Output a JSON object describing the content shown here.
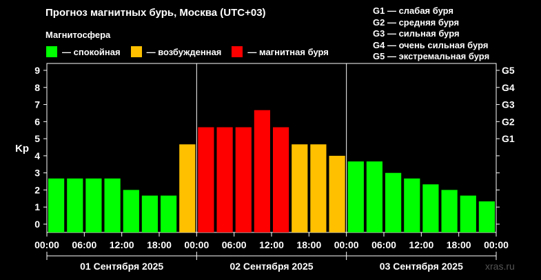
{
  "header": {
    "title": "Прогноз магнитных бурь, Москва (UTC+03)",
    "subtitle": "Магнитосфера"
  },
  "legend": [
    {
      "label": "— спокойная",
      "color": "#00ff00"
    },
    {
      "label": "— возбужденная",
      "color": "#ffc000"
    },
    {
      "label": "— магнитная буря",
      "color": "#ff0000"
    }
  ],
  "g_scale": [
    "G1 — слабая буря",
    "G2 — средняя буря",
    "G3 — сильная буря",
    "G4 — очень сильная буря",
    "G5 — экстремальная буря"
  ],
  "watermark": "xras.ru",
  "chart_data": {
    "type": "bar",
    "ylabel": "Kp",
    "ylim": [
      0,
      9
    ],
    "y_ticks": [
      "0",
      "1",
      "2",
      "3",
      "4",
      "5",
      "6",
      "7",
      "8",
      "9"
    ],
    "right_ticks": [
      {
        "label": "G1",
        "value": 5
      },
      {
        "label": "G2",
        "value": 6
      },
      {
        "label": "G3",
        "value": 7
      },
      {
        "label": "G4",
        "value": 8
      },
      {
        "label": "G5",
        "value": 9
      }
    ],
    "x_tick_labels": [
      "00:00",
      "06:00",
      "12:00",
      "18:00",
      "00:00",
      "06:00",
      "12:00",
      "18:00",
      "00:00",
      "06:00",
      "12:00",
      "18:00",
      "00:00"
    ],
    "days": [
      "01 Сентября 2025",
      "02 Сентября 2025",
      "03 Сентября 2025"
    ],
    "values": [
      2.67,
      2.67,
      2.67,
      2.67,
      2.0,
      1.67,
      1.67,
      4.67,
      5.67,
      5.67,
      5.67,
      6.67,
      5.67,
      4.67,
      4.67,
      4.0,
      3.67,
      3.67,
      3.0,
      2.67,
      2.33,
      2.0,
      1.67,
      1.33
    ],
    "colors": {
      "quiet": "#00ff00",
      "active": "#ffc000",
      "storm": "#ff0000"
    }
  }
}
